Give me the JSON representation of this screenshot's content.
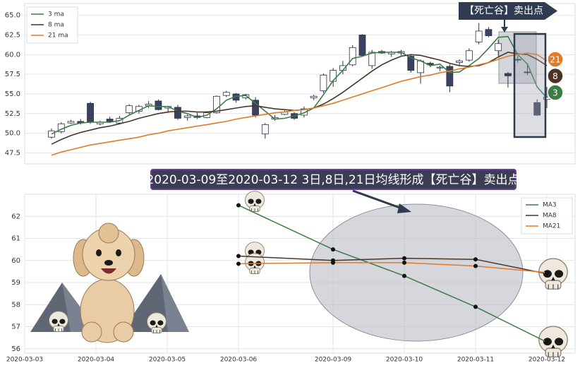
{
  "chart_data": [
    {
      "type": "candlestick",
      "legend": "upper left",
      "annotation": "【死亡谷】卖出点",
      "markers": [
        {
          "label": "21",
          "color": "#e07b2a"
        },
        {
          "label": "8",
          "color": "#4a3426"
        },
        {
          "label": "3",
          "color": "#3a7d44"
        }
      ],
      "ylim": [
        46.1,
        66.5
      ],
      "yticks": [
        47.5,
        {
          "value": 50,
          "label": "50.0"
        },
        52.5,
        {
          "value": 55,
          "label": "55.0"
        },
        57.5,
        {
          "value": 60,
          "label": "60.0"
        },
        62.5,
        {
          "value": 65,
          "label": "65.0"
        }
      ],
      "grid": true,
      "up_color": "#ffffff",
      "down_color": "#3a4260",
      "candles": {
        "open": [
          49.5,
          50.2,
          51.3,
          51.5,
          53.8,
          51.2,
          51.8,
          51.3,
          52.6,
          52.8,
          53.5,
          54.1,
          53.2,
          53.3,
          52.0,
          52.2,
          52.0,
          52.6,
          54.8,
          55.0,
          54.5,
          54.2,
          49.9,
          51.8,
          52.4,
          52.5,
          52.3,
          54.5,
          55.4,
          56.6,
          58.0,
          58.7,
          62.5,
          58.6,
          60.4,
          60.1,
          60.2,
          59.8,
          57.7,
          58.9,
          58.3,
          58.5,
          59.0,
          59.3,
          61.6,
          63.2,
          60.5,
          57.6,
          59.4,
          57.8,
          53.9,
          54.3
        ],
        "high": [
          50.6,
          51.4,
          51.7,
          51.8,
          54.0,
          51.6,
          52.1,
          52.2,
          53.7,
          53.6,
          54.1,
          54.3,
          53.5,
          53.6,
          52.4,
          52.6,
          52.8,
          54.8,
          55.4,
          55.1,
          55.0,
          54.6,
          51.3,
          52.3,
          52.9,
          52.7,
          53.4,
          54.9,
          57.6,
          58.3,
          59.2,
          61.2,
          62.6,
          60.6,
          60.6,
          60.5,
          60.6,
          60.0,
          59.4,
          59.1,
          58.6,
          58.8,
          59.4,
          60.8,
          64.0,
          63.5,
          61.9,
          57.8,
          59.8,
          58.8,
          54.3,
          55.9
        ],
        "low": [
          49.3,
          50.0,
          51.2,
          51.1,
          51.2,
          51.0,
          51.3,
          51.1,
          52.4,
          52.5,
          53.2,
          52.9,
          52.6,
          51.7,
          51.6,
          51.8,
          51.9,
          52.5,
          54.6,
          53.9,
          54.3,
          52.0,
          49.3,
          51.6,
          52.3,
          51.7,
          52.0,
          54.2,
          55.1,
          55.9,
          57.5,
          58.5,
          59.8,
          58.2,
          60.1,
          59.7,
          59.9,
          57.7,
          56.3,
          58.4,
          57.9,
          55.2,
          58.6,
          59.1,
          61.3,
          62.2,
          59.8,
          55.8,
          59.0,
          57.4,
          52.2,
          53.2
        ],
        "close": [
          50.3,
          51.2,
          51.5,
          51.3,
          51.4,
          51.4,
          51.5,
          51.9,
          53.5,
          53.4,
          53.7,
          53.0,
          53.4,
          51.9,
          52.2,
          52.0,
          52.6,
          54.7,
          55.2,
          54.2,
          54.9,
          52.3,
          51.1,
          52.0,
          52.7,
          51.9,
          53.1,
          54.7,
          57.4,
          58.0,
          58.6,
          60.9,
          59.9,
          60.3,
          60.2,
          60.3,
          60.4,
          58.0,
          59.2,
          58.7,
          58.4,
          56.0,
          59.2,
          60.5,
          63.0,
          62.4,
          61.4,
          57.3,
          59.3,
          57.7,
          52.3,
          54.6
        ]
      },
      "series": [
        {
          "name": "3 ma",
          "color": "#3a7d44",
          "values": [
            49.9,
            50.5,
            51.0,
            51.3,
            51.4,
            51.4,
            51.4,
            51.6,
            52.3,
            52.9,
            53.5,
            53.4,
            53.4,
            52.8,
            52.5,
            52.0,
            52.3,
            53.1,
            54.2,
            54.7,
            54.8,
            53.8,
            52.8,
            51.8,
            51.9,
            52.2,
            52.6,
            53.2,
            54.9,
            56.7,
            58.0,
            59.5,
            59.8,
            60.2,
            60.3,
            60.3,
            60.3,
            59.6,
            59.2,
            58.6,
            58.8,
            57.7,
            57.8,
            58.6,
            59.5,
            60.8,
            62.2,
            62.3,
            60.0,
            58.8,
            55.9,
            54.5
          ]
        },
        {
          "name": "8 ma",
          "color": "#4a3426",
          "values": [
            48.6,
            49.2,
            49.7,
            50.1,
            50.4,
            50.7,
            50.9,
            51.2,
            51.5,
            51.9,
            52.2,
            52.5,
            52.7,
            52.8,
            52.8,
            52.7,
            52.7,
            52.8,
            53.0,
            53.2,
            53.4,
            53.5,
            53.3,
            53.1,
            53.0,
            52.9,
            53.0,
            53.2,
            53.7,
            54.4,
            55.2,
            56.1,
            57.0,
            57.9,
            58.7,
            59.3,
            59.8,
            60.0,
            59.9,
            59.6,
            59.3,
            58.9,
            58.6,
            58.5,
            58.6,
            59.0,
            59.7,
            60.3,
            60.1,
            60.0,
            59.4,
            58.6
          ]
        },
        {
          "name": "21 ma",
          "color": "#e07b2a",
          "values": [
            47.2,
            47.6,
            47.9,
            48.2,
            48.5,
            48.7,
            48.9,
            49.1,
            49.3,
            49.5,
            49.8,
            50.0,
            50.3,
            50.5,
            50.7,
            50.9,
            51.1,
            51.3,
            51.5,
            51.8,
            52.0,
            52.2,
            52.4,
            52.6,
            52.7,
            52.9,
            53.0,
            53.2,
            53.5,
            53.8,
            54.2,
            54.6,
            55.0,
            55.4,
            55.8,
            56.2,
            56.6,
            56.9,
            57.2,
            57.4,
            57.7,
            57.9,
            58.2,
            58.4,
            58.7,
            59.0,
            59.4,
            59.8,
            60.0,
            60.2,
            60.0,
            59.2
          ]
        }
      ]
    },
    {
      "type": "line",
      "legend": "upper right",
      "annotation": "2020-03-09至2020-03-12 3日,8日,21日均线形成【死亡谷】卖出点",
      "categories": [
        "2020-03-03",
        "2020-03-04",
        "2020-03-05",
        "2020-03-06",
        "2020-03-09",
        "2020-03-10",
        "2020-03-11",
        "2020-03-12"
      ],
      "ylim": [
        55.8,
        63.0
      ],
      "yticks": [
        56,
        57,
        58,
        59,
        60,
        61,
        62
      ],
      "grid": true,
      "series": [
        {
          "name": "MA3",
          "color": "#3a7d44",
          "values": [
            null,
            null,
            null,
            62.5,
            60.5,
            59.3,
            57.9,
            56.3
          ]
        },
        {
          "name": "MA8",
          "color": "#4a3426",
          "values": [
            null,
            null,
            null,
            60.2,
            60.0,
            60.1,
            60.05,
            59.4
          ]
        },
        {
          "name": "MA21",
          "color": "#e07b2a",
          "values": [
            null,
            null,
            null,
            59.85,
            59.9,
            59.9,
            59.75,
            59.45
          ]
        }
      ]
    }
  ]
}
